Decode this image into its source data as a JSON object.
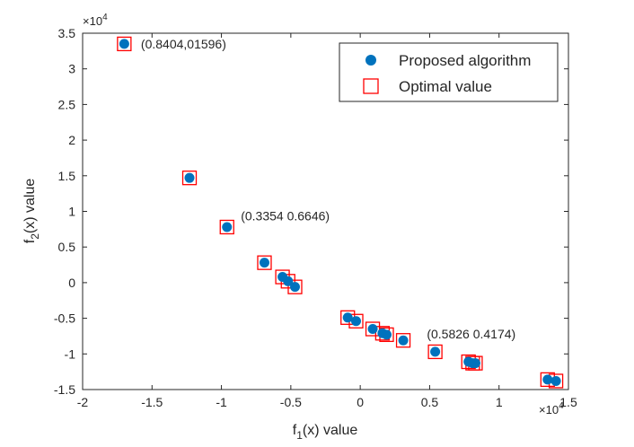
{
  "chart_data": {
    "type": "scatter",
    "title": "",
    "xlabel": "f",
    "xlabel_sub": "1",
    "xlabel_rest": "(x) value",
    "ylabel": "f",
    "ylabel_sub": "2",
    "ylabel_rest": "(x) value",
    "xlim": [
      -2,
      1.5
    ],
    "ylim": [
      -1.5,
      3.5
    ],
    "x_ticks": [
      -2,
      -1.5,
      -1,
      -0.5,
      0,
      0.5,
      1,
      1.5
    ],
    "x_tick_labels": [
      "-2",
      "-1.5",
      "-1",
      "-0.5",
      "0",
      "0.5",
      "1",
      "1.5"
    ],
    "y_ticks": [
      -1.5,
      -1,
      -0.5,
      0,
      0.5,
      1,
      1.5,
      2,
      2.5,
      3,
      3.5
    ],
    "y_tick_labels": [
      "-1.5",
      "-1",
      "-0.5",
      "0",
      "0.5",
      "1",
      "1.5",
      "2",
      "2.5",
      "3",
      "3.5"
    ],
    "x_exponent": {
      "base": "×10",
      "power": "4"
    },
    "y_exponent": {
      "base": "×10",
      "power": "4"
    },
    "colors": {
      "proposed": "#0072BD",
      "optimal": "#FF0000",
      "axis": "#262626"
    },
    "series": [
      {
        "name": "Proposed algorithm",
        "marker": "filled-circle",
        "x": [
          -1.7,
          -1.23,
          -0.96,
          -0.69,
          -0.56,
          -0.52,
          -0.47,
          -0.09,
          -0.03,
          0.09,
          0.16,
          0.19,
          0.31,
          0.54,
          0.78,
          0.81,
          0.83,
          1.35,
          1.41
        ],
        "y": [
          3.35,
          1.47,
          0.78,
          0.28,
          0.08,
          0.02,
          -0.06,
          -0.49,
          -0.54,
          -0.65,
          -0.71,
          -0.73,
          -0.81,
          -0.97,
          -1.11,
          -1.13,
          -1.13,
          -1.36,
          -1.38
        ]
      },
      {
        "name": "Optimal value",
        "marker": "open-square",
        "x": [
          -1.7,
          -1.23,
          -0.96,
          -0.69,
          -0.56,
          -0.52,
          -0.47,
          -0.09,
          -0.03,
          0.09,
          0.16,
          0.19,
          0.31,
          0.54,
          0.78,
          0.81,
          0.83,
          1.35,
          1.41
        ],
        "y": [
          3.35,
          1.47,
          0.78,
          0.28,
          0.08,
          0.02,
          -0.06,
          -0.49,
          -0.54,
          -0.65,
          -0.71,
          -0.73,
          -0.81,
          -0.97,
          -1.11,
          -1.13,
          -1.13,
          -1.36,
          -1.38
        ]
      }
    ],
    "annotations": [
      {
        "text": "(0.8404,01596)",
        "x": -1.58,
        "y": 3.35,
        "anchor": "start"
      },
      {
        "text": "(0.3354 0.6646)",
        "x": -0.86,
        "y": 0.94,
        "anchor": "start"
      },
      {
        "text": "(0.5826 0.4174)",
        "x": 0.48,
        "y": -0.72,
        "anchor": "start"
      }
    ],
    "legend": {
      "position": "top-right",
      "entries": [
        "Proposed algorithm",
        "Optimal value"
      ]
    },
    "grid": false
  }
}
